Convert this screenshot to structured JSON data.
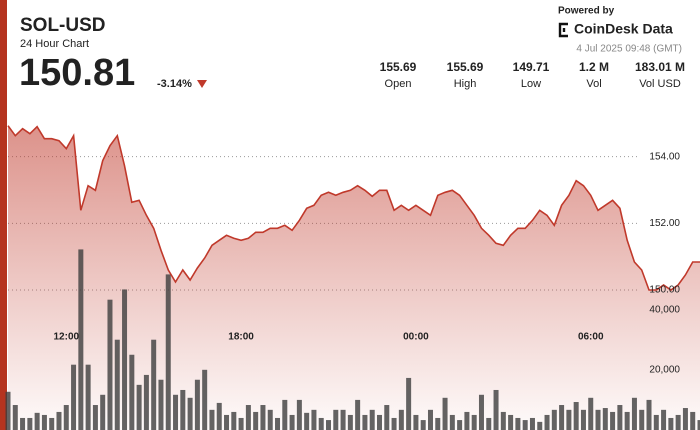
{
  "header": {
    "title": "SOL-USD",
    "subtitle": "24 Hour Chart",
    "price": "150.81",
    "change": "-3.14%",
    "powered_by": "Powered by",
    "brand": "CoinDesk Data",
    "timestamp": "4 Jul 2025 09:48 (GMT)",
    "stats": [
      {
        "value": "155.69",
        "label": "Open"
      },
      {
        "value": "155.69",
        "label": "High"
      },
      {
        "value": "149.71",
        "label": "Low"
      },
      {
        "value": "1.2 M",
        "label": "Vol"
      },
      {
        "value": "183.01 M",
        "label": "Vol USD"
      }
    ]
  },
  "chart_data": {
    "type": "line",
    "categories": [
      null,
      null,
      null,
      null,
      null,
      null,
      null,
      null,
      "12:00",
      null,
      null,
      null,
      null,
      null,
      null,
      null,
      null,
      null,
      null,
      null,
      null,
      null,
      null,
      null,
      null,
      null,
      null,
      null,
      null,
      null,
      null,
      null,
      "18:00",
      null,
      null,
      null,
      null,
      null,
      null,
      null,
      null,
      null,
      null,
      null,
      null,
      null,
      null,
      null,
      null,
      null,
      null,
      null,
      null,
      null,
      null,
      null,
      "00:00",
      null,
      null,
      null,
      null,
      null,
      null,
      null,
      null,
      null,
      null,
      null,
      null,
      null,
      null,
      null,
      null,
      null,
      null,
      null,
      null,
      null,
      null,
      null,
      "06:00",
      null,
      null,
      null,
      null,
      null,
      null,
      null,
      null,
      null,
      null,
      null,
      null,
      null,
      null,
      null
    ],
    "series": [
      {
        "color": "#c0392b",
        "values": [
          154.93,
          154.63,
          154.84,
          154.69,
          154.9,
          154.54,
          154.54,
          154.48,
          154.24,
          154.63,
          152.39,
          153.13,
          152.99,
          153.88,
          154.33,
          154.63,
          153.73,
          152.63,
          152.69,
          152.24,
          151.85,
          151.19,
          150.6,
          150.24,
          150.6,
          150.3,
          150.66,
          150.96,
          151.34,
          151.49,
          151.64,
          151.55,
          151.49,
          151.55,
          151.73,
          151.73,
          151.85,
          151.85,
          151.94,
          151.79,
          152.09,
          152.45,
          152.54,
          152.84,
          152.93,
          152.84,
          152.93,
          152.99,
          153.13,
          152.99,
          152.81,
          152.99,
          152.99,
          152.39,
          152.54,
          152.39,
          152.54,
          152.39,
          152.24,
          152.84,
          152.93,
          152.99,
          152.84,
          152.54,
          152.24,
          151.85,
          151.64,
          151.4,
          151.34,
          151.64,
          151.85,
          151.85,
          152.09,
          152.39,
          152.24,
          151.94,
          152.54,
          152.84,
          153.28,
          153.13,
          152.84,
          152.39,
          152.54,
          152.69,
          152.45,
          151.49,
          150.84,
          150.6,
          150.0,
          150.0,
          150.15,
          150.0,
          150.15,
          150.45,
          150.84,
          150.84
        ]
      },
      {
        "type": "bar",
        "axis": "y2",
        "color": "#3d3d3d",
        "values": [
          12700,
          8300,
          4000,
          4000,
          5700,
          5000,
          4000,
          6000,
          8300,
          21700,
          60000,
          21700,
          8300,
          11700,
          43300,
          30000,
          46700,
          25000,
          15000,
          18300,
          30000,
          16700,
          51700,
          11700,
          13300,
          10700,
          16700,
          20000,
          6700,
          9000,
          5000,
          6000,
          4000,
          8300,
          6000,
          8300,
          6700,
          4000,
          10000,
          5000,
          10000,
          5700,
          6700,
          4000,
          3300,
          6700,
          6700,
          5000,
          10000,
          5000,
          6700,
          5000,
          8300,
          4000,
          6700,
          17300,
          5000,
          3300,
          6700,
          4000,
          10700,
          5000,
          3300,
          6000,
          5000,
          11700,
          4000,
          13300,
          6000,
          5000,
          4000,
          3300,
          4000,
          2700,
          5000,
          6700,
          8300,
          6700,
          9300,
          6700,
          10700,
          6700,
          7300,
          6000,
          8300,
          6000,
          10700,
          6700,
          10000,
          5000,
          6700,
          4000,
          5000,
          7300,
          6000,
          3300
        ]
      }
    ],
    "ylim": [
      145.8,
      155.1
    ],
    "yticks": [
      {
        "value": 150,
        "label": "150.00"
      },
      {
        "value": 152,
        "label": "152.00"
      },
      {
        "value": 154,
        "label": "154.00"
      }
    ],
    "y2lim": [
      0,
      103000
    ],
    "y2ticks": [
      {
        "value": 20000,
        "label": "20,000"
      },
      {
        "value": 40000,
        "label": "40,000"
      }
    ],
    "grid": true
  }
}
